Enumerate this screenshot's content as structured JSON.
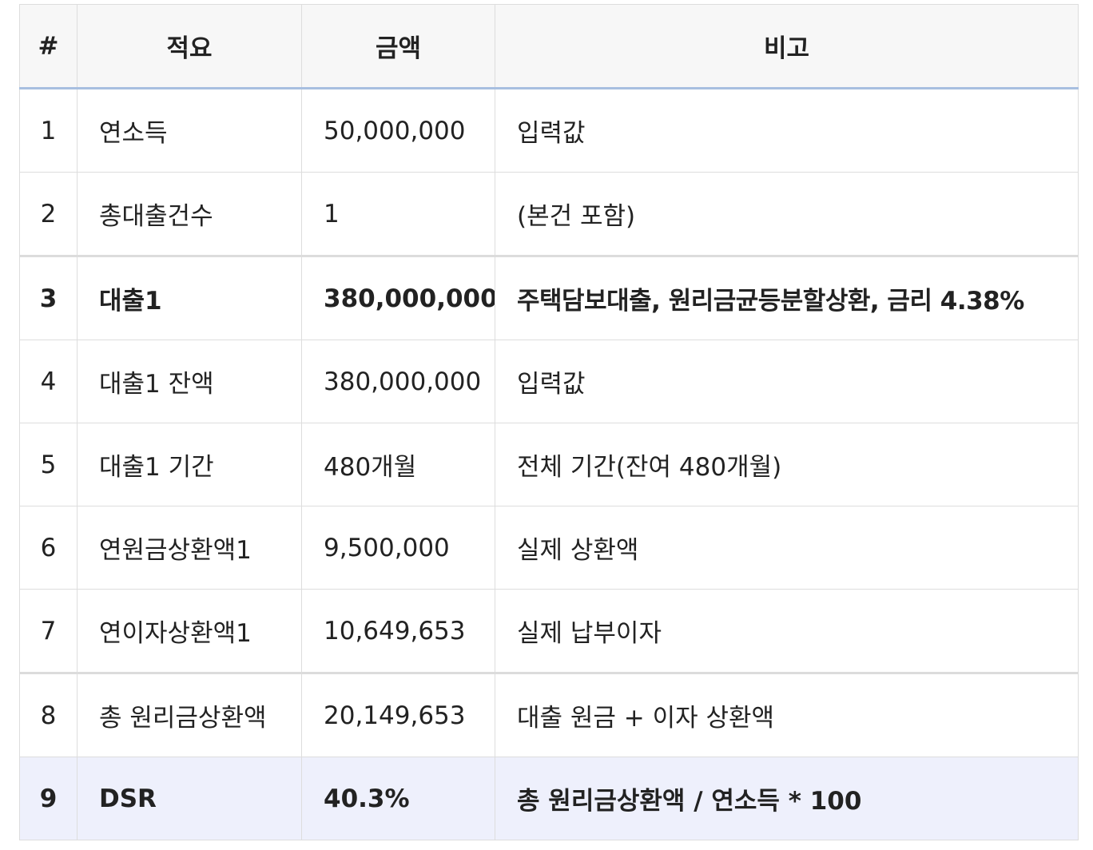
{
  "table": {
    "headers": [
      "#",
      "적요",
      "금액",
      "비고"
    ],
    "rows": [
      {
        "num": "1",
        "item": "연소득",
        "amount": "50,000,000",
        "note": "입력값"
      },
      {
        "num": "2",
        "item": "총대출건수",
        "amount": "1",
        "note": "(본건 포함)"
      },
      {
        "num": "3",
        "item": "대출1",
        "amount": "380,000,000",
        "note": "주택담보대출, 원리금균등분할상환, 금리 4.38%"
      },
      {
        "num": "4",
        "item": "대출1 잔액",
        "amount": "380,000,000",
        "note": "입력값"
      },
      {
        "num": "5",
        "item": "대출1 기간",
        "amount": "480개월",
        "note": "전체 기간(잔여 480개월)"
      },
      {
        "num": "6",
        "item": "연원금상환액1",
        "amount": "9,500,000",
        "note": "실제 상환액"
      },
      {
        "num": "7",
        "item": "연이자상환액1",
        "amount": "10,649,653",
        "note": "실제 납부이자"
      },
      {
        "num": "8",
        "item": "총 원리금상환액",
        "amount": "20,149,653",
        "note": "대출 원금 + 이자 상환액"
      },
      {
        "num": "9",
        "item": "DSR",
        "amount": "40.3%",
        "note": "총 원리금상환액 / 연소득 * 100"
      }
    ]
  },
  "colors": {
    "header_bg": "#f7f7f7",
    "header_underline": "#a8bfe0",
    "border": "#dddddd",
    "highlight_row_bg": "#eef0fc",
    "text": "#222222"
  }
}
